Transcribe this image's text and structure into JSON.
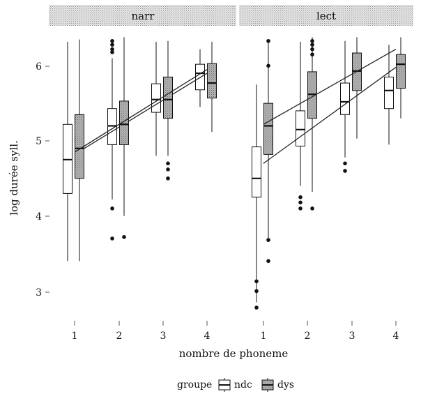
{
  "chart_data": {
    "type": "boxplot",
    "xlabel": "nombre de phoneme",
    "ylabel": "log durée syll.",
    "ylim": [
      2.6,
      6.45
    ],
    "yticks": [
      3,
      4,
      5,
      6
    ],
    "categories": [
      "1",
      "2",
      "3",
      "4"
    ],
    "legend": {
      "title": "groupe",
      "placement": "bottom",
      "entries": [
        "ndc",
        "dys"
      ]
    },
    "colors": {
      "ndc": "#ffffff",
      "dys": "#a6a6a6",
      "strip": "#d4d4d4",
      "ink": "#111111"
    },
    "panels": [
      {
        "name": "narr",
        "groups": [
          {
            "name": "ndc",
            "boxes": [
              {
                "x": "1",
                "lower": 3.4,
                "q1": 4.3,
                "median": 4.75,
                "q3": 5.22,
                "upper": 6.32,
                "outliers": []
              },
              {
                "x": "2",
                "lower": 4.22,
                "q1": 4.95,
                "median": 5.2,
                "q3": 5.43,
                "upper": 6.1,
                "outliers": [
                  6.33,
                  6.28,
                  6.22,
                  6.18,
                  4.1,
                  3.7
                ]
              },
              {
                "x": "3",
                "lower": 4.8,
                "q1": 5.38,
                "median": 5.55,
                "q3": 5.76,
                "upper": 6.32,
                "outliers": []
              },
              {
                "x": "4",
                "lower": 5.45,
                "q1": 5.68,
                "median": 5.9,
                "q3": 6.02,
                "upper": 6.22,
                "outliers": []
              }
            ],
            "trend": [
              [
                1,
                4.82
              ],
              [
                4,
                5.9
              ]
            ]
          },
          {
            "name": "dys",
            "boxes": [
              {
                "x": "1",
                "lower": 3.4,
                "q1": 4.5,
                "median": 4.9,
                "q3": 5.35,
                "upper": 6.35,
                "outliers": []
              },
              {
                "x": "2",
                "lower": 4.0,
                "q1": 4.95,
                "median": 5.22,
                "q3": 5.53,
                "upper": 6.38,
                "outliers": [
                  3.72
                ]
              },
              {
                "x": "3",
                "lower": 4.8,
                "q1": 5.3,
                "median": 5.55,
                "q3": 5.85,
                "upper": 6.33,
                "outliers": [
                  4.7,
                  4.62,
                  4.5
                ]
              },
              {
                "x": "4",
                "lower": 5.12,
                "q1": 5.57,
                "median": 5.77,
                "q3": 6.03,
                "upper": 6.32,
                "outliers": []
              }
            ],
            "trend": [
              [
                1,
                4.85
              ],
              [
                4,
                5.95
              ]
            ]
          }
        ]
      },
      {
        "name": "lect",
        "groups": [
          {
            "name": "ndc",
            "boxes": [
              {
                "x": "1",
                "lower": 2.85,
                "q1": 4.25,
                "median": 4.5,
                "q3": 4.92,
                "upper": 5.75,
                "outliers": [
                  3.13,
                  3.0,
                  2.78
                ]
              },
              {
                "x": "2",
                "lower": 4.4,
                "q1": 4.93,
                "median": 5.15,
                "q3": 5.4,
                "upper": 6.32,
                "outliers": [
                  4.25,
                  4.18,
                  4.1
                ]
              },
              {
                "x": "3",
                "lower": 4.78,
                "q1": 5.35,
                "median": 5.52,
                "q3": 5.77,
                "upper": 6.33,
                "outliers": [
                  4.7,
                  4.6
                ]
              },
              {
                "x": "4",
                "lower": 4.95,
                "q1": 5.43,
                "median": 5.67,
                "q3": 5.85,
                "upper": 6.28,
                "outliers": []
              }
            ],
            "trend": [
              [
                1,
                4.7
              ],
              [
                4,
                5.98
              ]
            ]
          },
          {
            "name": "dys",
            "boxes": [
              {
                "x": "1",
                "lower": 3.7,
                "q1": 4.82,
                "median": 5.2,
                "q3": 5.5,
                "upper": 6.32,
                "outliers": [
                  6.33,
                  6.0,
                  3.68,
                  3.4
                ]
              },
              {
                "x": "2",
                "lower": 4.32,
                "q1": 5.3,
                "median": 5.62,
                "q3": 5.92,
                "upper": 6.38,
                "outliers": [
                  6.33,
                  6.28,
                  6.22,
                  6.15,
                  4.1
                ]
              },
              {
                "x": "3",
                "lower": 5.03,
                "q1": 5.67,
                "median": 5.93,
                "q3": 6.17,
                "upper": 6.38,
                "outliers": []
              },
              {
                "x": "4",
                "lower": 5.3,
                "q1": 5.7,
                "median": 6.02,
                "q3": 6.15,
                "upper": 6.38,
                "outliers": []
              }
            ],
            "trend": [
              [
                1,
                5.22
              ],
              [
                4,
                6.22
              ]
            ]
          }
        ]
      }
    ]
  }
}
